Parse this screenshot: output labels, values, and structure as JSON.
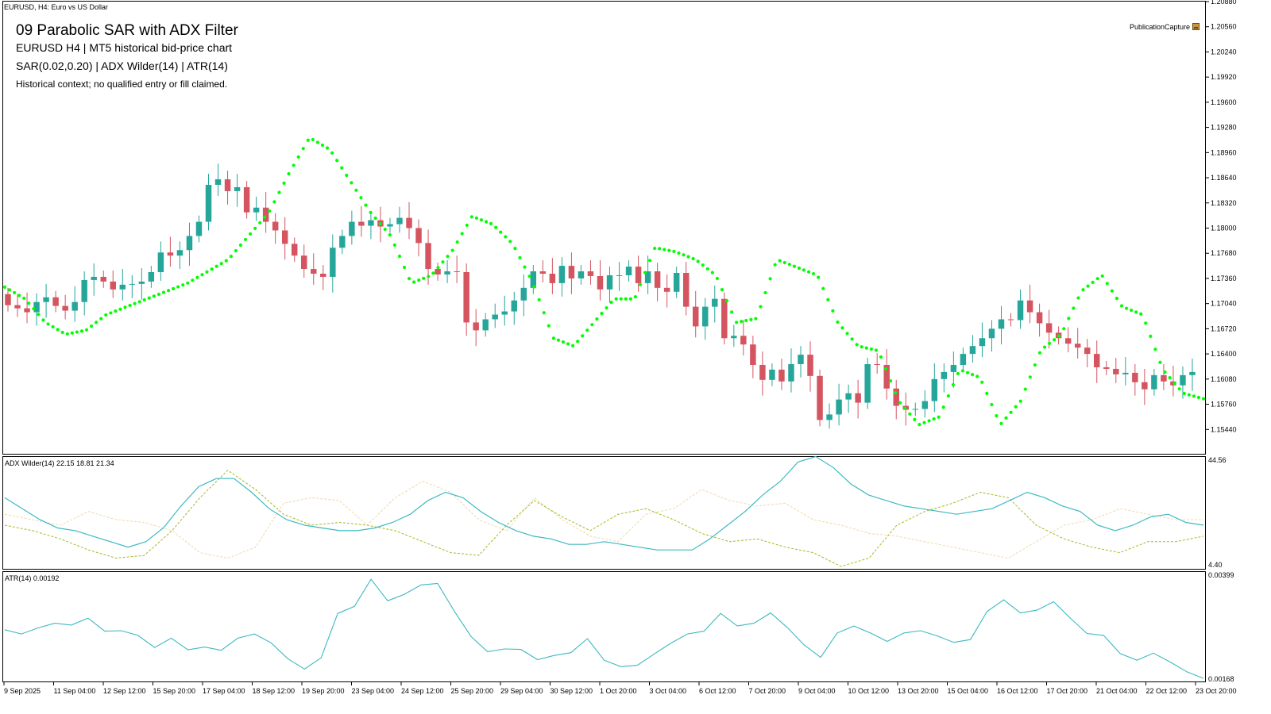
{
  "window": {
    "caption": "EURUSD, H4:  Euro vs US Dollar",
    "publication_tag": "PublicationCapture"
  },
  "overlay": {
    "title": "09  Parabolic SAR with ADX Filter",
    "subtitle": "EURUSD  H4  |  MT5 historical bid-price chart",
    "indicators": "SAR(0.02,0.20) | ADX Wilder(14) | ATR(14)",
    "note": "Historical context; no qualified entry or fill claimed."
  },
  "colors": {
    "bull": "#26a69a",
    "bear": "#d4545f",
    "sar": "#00ff00",
    "adx": "#3cb9c2",
    "plus_di": "#a8b820",
    "minus_di": "#f0d8a8",
    "atr": "#3cb9c2",
    "axis": "#000000"
  },
  "price_axis": {
    "ticks": [
      "1.20880",
      "1.20560",
      "1.20240",
      "1.19920",
      "1.19600",
      "1.19280",
      "1.18960",
      "1.18640",
      "1.18320",
      "1.18000",
      "1.17680",
      "1.17360",
      "1.17040",
      "1.16720",
      "1.16400",
      "1.16080",
      "1.15760",
      "1.15440"
    ],
    "ylim": [
      1.1513,
      1.2088
    ]
  },
  "adx_pane": {
    "label": "ADX Wilder(14) 22.15 18.81 21.34",
    "max_label": "44.56",
    "min_label": "4.40",
    "ylim": [
      4.4,
      44.56
    ]
  },
  "atr_pane": {
    "label": "ATR(14) 0.00192",
    "max_label": "0.00399",
    "min_label": "0.00168",
    "ylim": [
      0.00168,
      0.00399
    ]
  },
  "time_axis": {
    "labels": [
      "9 Sep 2025",
      "11 Sep 04:00",
      "12 Sep 12:00",
      "15 Sep 20:00",
      "17 Sep 04:00",
      "18 Sep 12:00",
      "19 Sep 20:00",
      "23 Sep 04:00",
      "24 Sep 12:00",
      "25 Sep 20:00",
      "29 Sep 04:00",
      "30 Sep 12:00",
      "1 Oct 20:00",
      "3 Oct 04:00",
      "6 Oct 12:00",
      "7 Oct 20:00",
      "9 Oct 04:00",
      "10 Oct 12:00",
      "13 Oct 20:00",
      "15 Oct 04:00",
      "16 Oct 12:00",
      "17 Oct 20:00",
      "21 Oct 04:00",
      "22 Oct 12:00",
      "23 Oct 20:00"
    ]
  },
  "chart_data": {
    "type": "line",
    "symbol": "EURUSD",
    "timeframe": "H4",
    "price_close_approx": [
      1.1702,
      1.1698,
      1.1693,
      1.1706,
      1.1712,
      1.1701,
      1.1695,
      1.1706,
      1.1734,
      1.1738,
      1.1732,
      1.1722,
      1.1728,
      1.1729,
      1.1732,
      1.1744,
      1.1769,
      1.1765,
      1.1772,
      1.179,
      1.1808,
      1.1855,
      1.1862,
      1.1847,
      1.1852,
      1.182,
      1.1826,
      1.1808,
      1.1797,
      1.178,
      1.1765,
      1.1748,
      1.1742,
      1.1738,
      1.1775,
      1.179,
      1.1808,
      1.1803,
      1.181,
      1.1802,
      1.1805,
      1.1813,
      1.18,
      1.1781,
      1.1748,
      1.1741,
      1.1745,
      1.1744,
      1.168,
      1.167,
      1.1684,
      1.169,
      1.1694,
      1.1708,
      1.1724,
      1.1745,
      1.1742,
      1.173,
      1.1752,
      1.1736,
      1.1745,
      1.1739,
      1.1722,
      1.174,
      1.174,
      1.1751,
      1.173,
      1.1745,
      1.1724,
      1.1719,
      1.1743,
      1.17,
      1.1675,
      1.17,
      1.171,
      1.166,
      1.1663,
      1.1652,
      1.1626,
      1.1607,
      1.162,
      1.1605,
      1.1627,
      1.1639,
      1.1612,
      1.1556,
      1.1563,
      1.1582,
      1.159,
      1.1578,
      1.1627,
      1.1626,
      1.1596,
      1.1574,
      1.1569,
      1.157,
      1.158,
      1.1608,
      1.1617,
      1.1626,
      1.164,
      1.165,
      1.166,
      1.1672,
      1.1684,
      1.1683,
      1.1708,
      1.1693,
      1.1679,
      1.1667,
      1.166,
      1.1653,
      1.1648,
      1.164,
      1.1623,
      1.1621,
      1.1614,
      1.1616,
      1.1604,
      1.1595,
      1.1613,
      1.1605,
      1.16,
      1.1613,
      1.1617
    ],
    "sar_approx": [
      1.1725,
      1.171,
      1.168,
      1.1665,
      1.167,
      1.169,
      1.17,
      1.171,
      1.172,
      1.173,
      1.1745,
      1.176,
      1.179,
      1.182,
      1.187,
      1.1915,
      1.19,
      1.186,
      1.182,
      1.179,
      1.173,
      1.174,
      1.177,
      1.1815,
      1.1805,
      1.178,
      1.173,
      1.166,
      1.165,
      1.168,
      1.171,
      1.171,
      1.1775,
      1.177,
      1.176,
      1.174,
      1.168,
      1.1685,
      1.176,
      1.175,
      1.174,
      1.168,
      1.165,
      1.1644,
      1.158,
      1.155,
      1.156,
      1.162,
      1.161,
      1.155,
      1.158,
      1.1645,
      1.1665,
      1.172,
      1.174,
      1.17,
      1.169,
      1.162,
      1.159,
      1.1583
    ],
    "adx_approx": [
      30,
      26,
      22,
      19,
      18,
      16,
      14,
      12,
      14,
      19,
      27,
      34,
      37,
      37,
      32,
      26,
      22,
      20,
      19,
      18,
      18,
      19,
      21,
      24,
      29,
      32,
      30,
      25,
      21,
      18,
      16,
      15,
      13,
      13,
      14,
      13,
      12,
      11,
      11,
      11,
      15,
      20,
      25,
      31,
      36,
      43,
      45,
      41,
      35,
      31,
      29,
      27,
      26,
      25,
      24,
      25,
      26,
      29,
      32,
      30,
      27,
      25,
      20,
      18,
      20,
      23,
      24,
      21,
      20
    ],
    "plus_di_approx": [
      20,
      18,
      15,
      11,
      8,
      9,
      18,
      30,
      40,
      33,
      24,
      20,
      21,
      20,
      18,
      14,
      10,
      9,
      20,
      29,
      23,
      18,
      24,
      26,
      22,
      17,
      14,
      15,
      12,
      10,
      5,
      8,
      20,
      25,
      28,
      32,
      30,
      20,
      15,
      12,
      10,
      14,
      14,
      16
    ],
    "minus_di_approx": [
      24,
      22,
      20,
      25,
      22,
      21,
      18,
      10,
      8,
      12,
      28,
      30,
      29,
      20,
      30,
      36,
      32,
      22,
      18,
      30,
      22,
      16,
      14,
      24,
      26,
      33,
      29,
      27,
      28,
      22,
      20,
      17,
      16,
      14,
      12,
      10,
      8,
      14,
      20,
      22,
      26,
      24,
      22,
      22
    ],
    "atr_approx": [
      0.00277,
      0.00268,
      0.00281,
      0.00291,
      0.00287,
      0.00302,
      0.00274,
      0.00275,
      0.00265,
      0.00239,
      0.00259,
      0.00234,
      0.0024,
      0.00233,
      0.00259,
      0.00268,
      0.00249,
      0.00215,
      0.00193,
      0.00217,
      0.00312,
      0.00327,
      0.00385,
      0.00339,
      0.00353,
      0.00373,
      0.00376,
      0.00317,
      0.00263,
      0.0023,
      0.00236,
      0.00235,
      0.00213,
      0.00222,
      0.00228,
      0.00258,
      0.00212,
      0.00198,
      0.00201,
      0.00225,
      0.00248,
      0.00268,
      0.00274,
      0.00312,
      0.00285,
      0.00291,
      0.00313,
      0.00282,
      0.00245,
      0.00218,
      0.0027,
      0.00285,
      0.0027,
      0.00252,
      0.0027,
      0.00275,
      0.00264,
      0.0025,
      0.00256,
      0.00316,
      0.00341,
      0.00313,
      0.00319,
      0.00337,
      0.00302,
      0.00269,
      0.00265,
      0.00226,
      0.00212,
      0.00227,
      0.00208,
      0.00187,
      0.00173
    ]
  }
}
